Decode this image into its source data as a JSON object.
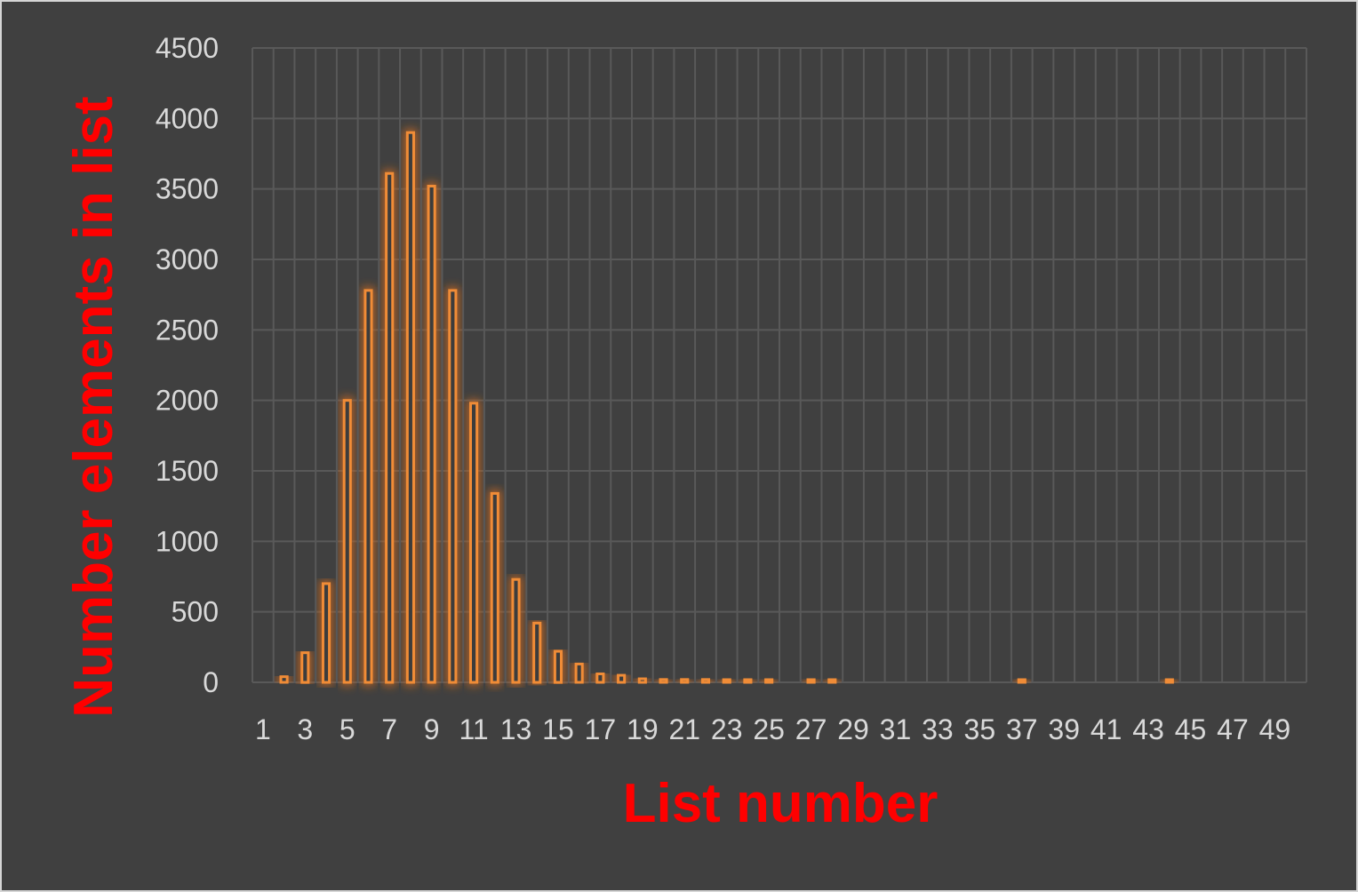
{
  "chart_data": {
    "type": "bar",
    "title": "",
    "xlabel": "List number",
    "ylabel": "Number elements in list",
    "categories": [
      1,
      2,
      3,
      4,
      5,
      6,
      7,
      8,
      9,
      10,
      11,
      12,
      13,
      14,
      15,
      16,
      17,
      18,
      19,
      20,
      21,
      22,
      23,
      24,
      25,
      26,
      27,
      28,
      29,
      30,
      31,
      32,
      33,
      34,
      35,
      36,
      37,
      38,
      39,
      40,
      41,
      42,
      43,
      44,
      45,
      46,
      47,
      48,
      49,
      50
    ],
    "x_tick_labels": [
      "1",
      "3",
      "5",
      "7",
      "9",
      "11",
      "13",
      "15",
      "17",
      "19",
      "21",
      "23",
      "25",
      "27",
      "29",
      "31",
      "33",
      "35",
      "37",
      "39",
      "41",
      "43",
      "45",
      "47",
      "49"
    ],
    "values": [
      0,
      40,
      210,
      700,
      2000,
      2780,
      3610,
      3900,
      3520,
      2780,
      1980,
      1340,
      730,
      420,
      220,
      130,
      60,
      50,
      25,
      20,
      20,
      20,
      15,
      15,
      15,
      0,
      15,
      15,
      0,
      0,
      0,
      0,
      0,
      0,
      0,
      0,
      10,
      0,
      0,
      0,
      0,
      0,
      0,
      10,
      0,
      0,
      0,
      0,
      0,
      0
    ],
    "ylim": [
      0,
      4500
    ],
    "y_ticks": [
      0,
      500,
      1000,
      1500,
      2000,
      2500,
      3000,
      3500,
      4000,
      4500
    ],
    "grid": true,
    "legend": "none",
    "colors": {
      "background": "#404040",
      "bar_stroke": "#f08c37",
      "bar_fill": "#3c3c3c",
      "bar_glow": "#c4661f",
      "grid": "#595959",
      "tick_label": "#d9d9d9",
      "axis_title": "#ff0000"
    }
  }
}
